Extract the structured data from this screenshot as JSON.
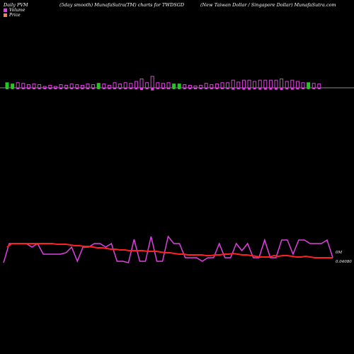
{
  "header": {
    "left": "Daily PVM",
    "center": "(5day smooth) MunafaSutra(TM) charts for TWDSGD",
    "right": "(New  Taiwan  Dollar / Singapore  Dollar) MunafaSutra.com"
  },
  "legend": {
    "volume_label": "Volume",
    "price_label": "Price",
    "volume_color": "#e040e0",
    "price_color": "#ff7f50"
  },
  "right_labels": {
    "volume": "0M",
    "price": "0.04080"
  },
  "chart_data": {
    "type": "line",
    "volume_bars": {
      "direction": [
        "down",
        "down",
        "up",
        "up",
        "up",
        "up",
        "up",
        "up",
        "up",
        "up",
        "up",
        "up",
        "up",
        "up",
        "up",
        "up",
        "up",
        "down",
        "up",
        "up",
        "up",
        "up",
        "up",
        "up",
        "up",
        "up",
        "up",
        "up",
        "up",
        "up",
        "up",
        "down",
        "down",
        "up",
        "up",
        "up",
        "up",
        "up",
        "up",
        "up",
        "up",
        "up",
        "up",
        "up",
        "up",
        "up",
        "up",
        "up",
        "up",
        "up",
        "up",
        "up",
        "up",
        "up",
        "up",
        "up",
        "down",
        "up",
        "up"
      ],
      "values": [
        8,
        6,
        8,
        7,
        5,
        6,
        5,
        2,
        4,
        2,
        5,
        4,
        6,
        5,
        4,
        6,
        5,
        7,
        6,
        4,
        8,
        6,
        8,
        7,
        10,
        14,
        8,
        18,
        8,
        7,
        8,
        6,
        6,
        5,
        4,
        3,
        4,
        7,
        5,
        6,
        8,
        8,
        12,
        9,
        12,
        12,
        10,
        12,
        12,
        12,
        12,
        14,
        10,
        12,
        10,
        8,
        8,
        7,
        6
      ]
    },
    "series": [
      {
        "values": [
          3,
          30,
          30,
          30,
          30,
          25,
          30,
          15,
          15,
          15,
          15,
          17,
          25,
          5,
          25,
          25,
          30,
          30,
          25,
          30,
          5,
          5,
          3,
          36,
          5,
          5,
          40,
          5,
          5,
          40,
          30,
          30,
          10,
          10,
          10,
          5,
          10,
          10,
          30,
          10,
          10,
          30,
          20,
          30,
          10,
          10,
          35,
          10,
          10,
          35,
          35,
          15,
          35,
          35,
          30,
          30,
          30,
          35,
          10
        ]
      },
      {
        "values": [
          25,
          30,
          30,
          30,
          30,
          30,
          30,
          30,
          30,
          30,
          30,
          29,
          29,
          29,
          28,
          27,
          27,
          26,
          26,
          25,
          24,
          24,
          23,
          22,
          22,
          21,
          21,
          20,
          20,
          20,
          20,
          19,
          19,
          19,
          18,
          17,
          17,
          16,
          15,
          15,
          14,
          14,
          14,
          14,
          13,
          13,
          14,
          14,
          15,
          15,
          16,
          15,
          14,
          14,
          13,
          12,
          11,
          11,
          11,
          13,
          12,
          13,
          13,
          12,
          11,
          11,
          12,
          11,
          10,
          10,
          10,
          10,
          10
        ]
      }
    ]
  }
}
